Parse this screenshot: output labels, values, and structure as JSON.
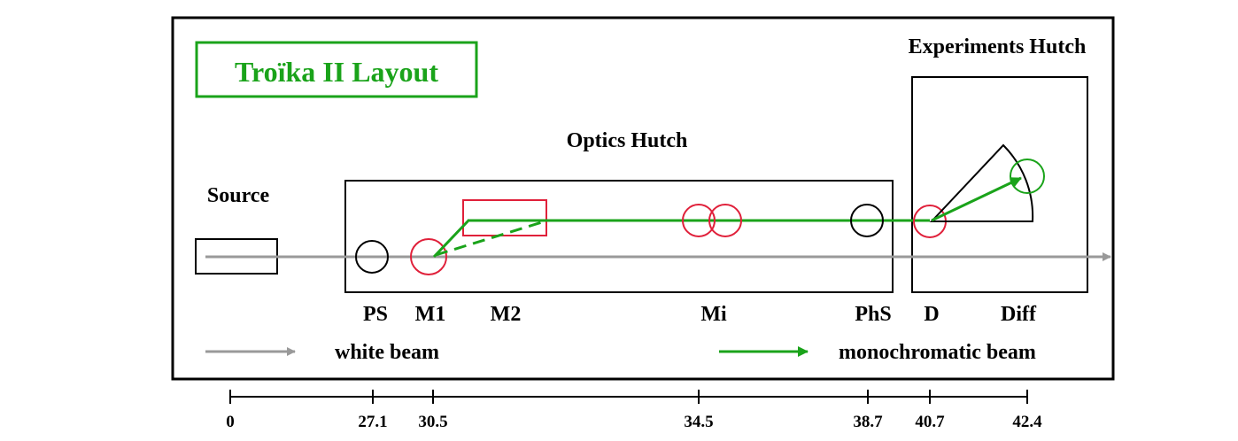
{
  "title": "Troïka II Layout",
  "hutches": {
    "source": "Source",
    "optics": "Optics Hutch",
    "experiments": "Experiments Hutch"
  },
  "components": {
    "ps": "PS",
    "m1": "M1",
    "m2": "M2",
    "mi": "Mi",
    "phs": "PhS",
    "d": "D",
    "diff": "Diff"
  },
  "legend": {
    "white": "white beam",
    "mono": "monochromatic beam"
  },
  "ruler": {
    "ticks": [
      "0",
      "27.1",
      "30.5",
      "34.5",
      "38.7",
      "40.7",
      "42.4"
    ]
  },
  "colors": {
    "white_beam": "#999999",
    "mono_beam": "#1aa31a",
    "optic_element": "#e0203a",
    "title_green": "#1aa31a",
    "frame": "#000000"
  }
}
